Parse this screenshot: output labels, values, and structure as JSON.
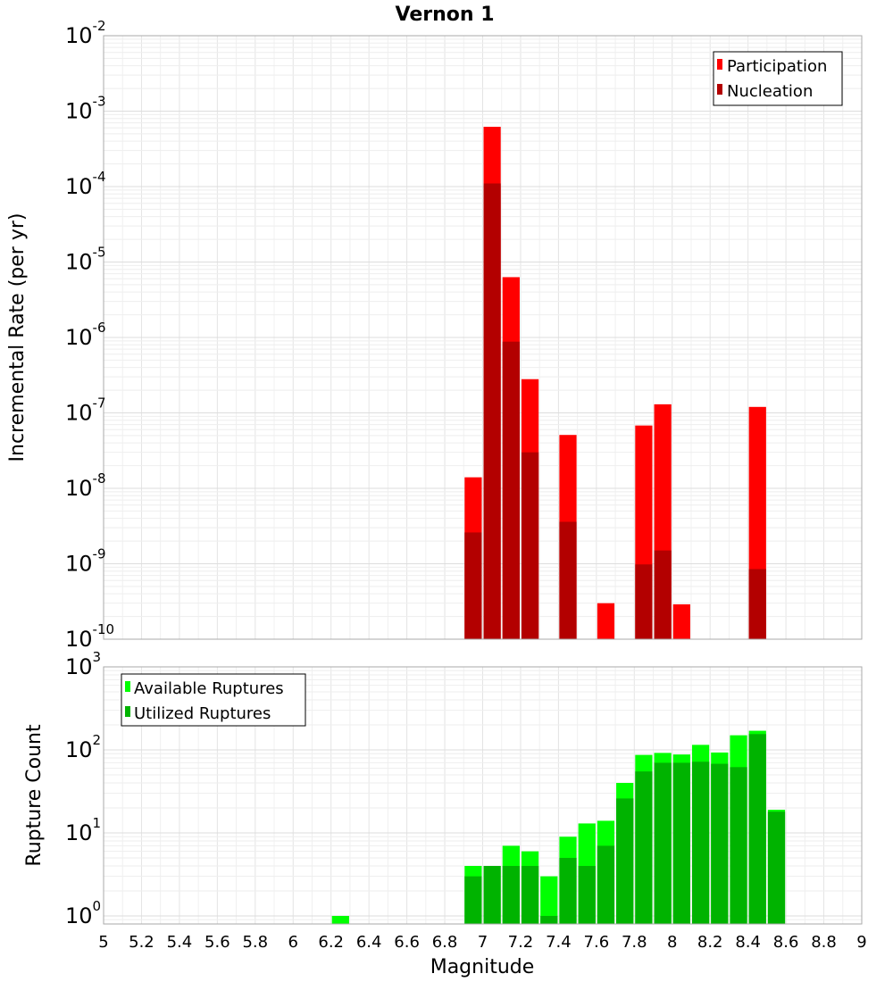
{
  "chart_data": [
    {
      "type": "bar",
      "title": "Vernon 1",
      "xlabel": "",
      "ylabel": "Incremental Rate (per yr)",
      "yscale": "log",
      "ylim": [
        1e-10,
        0.01
      ],
      "xlim": [
        5,
        9
      ],
      "y_tick_exponents": [
        "-2",
        "-3",
        "-4",
        "-5",
        "-6",
        "-7",
        "-8",
        "-9",
        "-10"
      ],
      "y_tick_base": "10",
      "grid": true,
      "legend_position": "top-right",
      "bar_width": 0.1,
      "x": [
        6.95,
        7.05,
        7.15,
        7.25,
        7.45,
        7.65,
        7.85,
        7.95,
        8.05,
        8.45
      ],
      "series": [
        {
          "name": "Participation",
          "color": "#ff0000",
          "values": [
            1.4e-08,
            0.00062,
            6.3e-06,
            2.8e-07,
            5.1e-08,
            3e-10,
            6.8e-08,
            1.3e-07,
            2.9e-10,
            1.2e-07
          ]
        },
        {
          "name": "Nucleation",
          "color": "#b30000",
          "values": [
            2.6e-09,
            0.00011,
            8.8e-07,
            3e-08,
            3.6e-09,
            null,
            9.8e-10,
            1.5e-09,
            null,
            8.5e-10
          ]
        }
      ]
    },
    {
      "type": "bar",
      "title": "",
      "xlabel": "Magnitude",
      "ylabel": "Rupture Count",
      "yscale": "log",
      "ylim": [
        0.8,
        1000
      ],
      "xlim": [
        5,
        9
      ],
      "x_ticks": [
        "5",
        "5.2",
        "5.4",
        "5.6",
        "5.8",
        "6",
        "6.2",
        "6.4",
        "6.6",
        "6.8",
        "7",
        "7.2",
        "7.4",
        "7.6",
        "7.8",
        "8",
        "8.2",
        "8.4",
        "8.6",
        "8.8",
        "9"
      ],
      "y_tick_exponents": [
        "3",
        "2",
        "1",
        "0"
      ],
      "y_tick_base": "10",
      "grid": true,
      "legend_position": "top-left",
      "bar_width": 0.1,
      "x": [
        6.25,
        6.95,
        7.05,
        7.15,
        7.25,
        7.35,
        7.45,
        7.55,
        7.65,
        7.75,
        7.85,
        7.95,
        8.05,
        8.15,
        8.25,
        8.35,
        8.45,
        8.55
      ],
      "series": [
        {
          "name": "Available Ruptures",
          "color": "#00ff00",
          "values": [
            1,
            4,
            4,
            7,
            6,
            3,
            9,
            13,
            14,
            40,
            87,
            92,
            88,
            115,
            93,
            150,
            170,
            19
          ]
        },
        {
          "name": "Utilized Ruptures",
          "color": "#00b300",
          "values": [
            null,
            3,
            4,
            4,
            4,
            1,
            5,
            4,
            7,
            26,
            55,
            70,
            70,
            72,
            68,
            62,
            155,
            18
          ]
        }
      ]
    }
  ]
}
